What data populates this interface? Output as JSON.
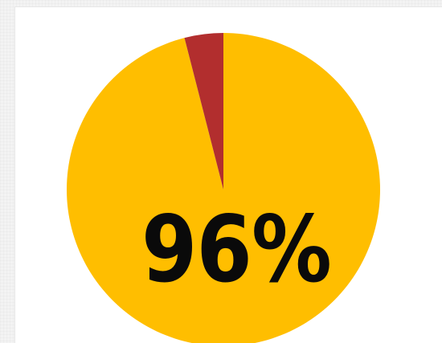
{
  "chart_data": {
    "type": "pie",
    "categories": [
      "",
      ""
    ],
    "values": [
      96,
      4
    ],
    "colors": [
      "#FFBE00",
      "#B22E2E"
    ],
    "start": "top",
    "direction": "clockwise",
    "annotation": "96%",
    "legend": "none",
    "title": ""
  }
}
